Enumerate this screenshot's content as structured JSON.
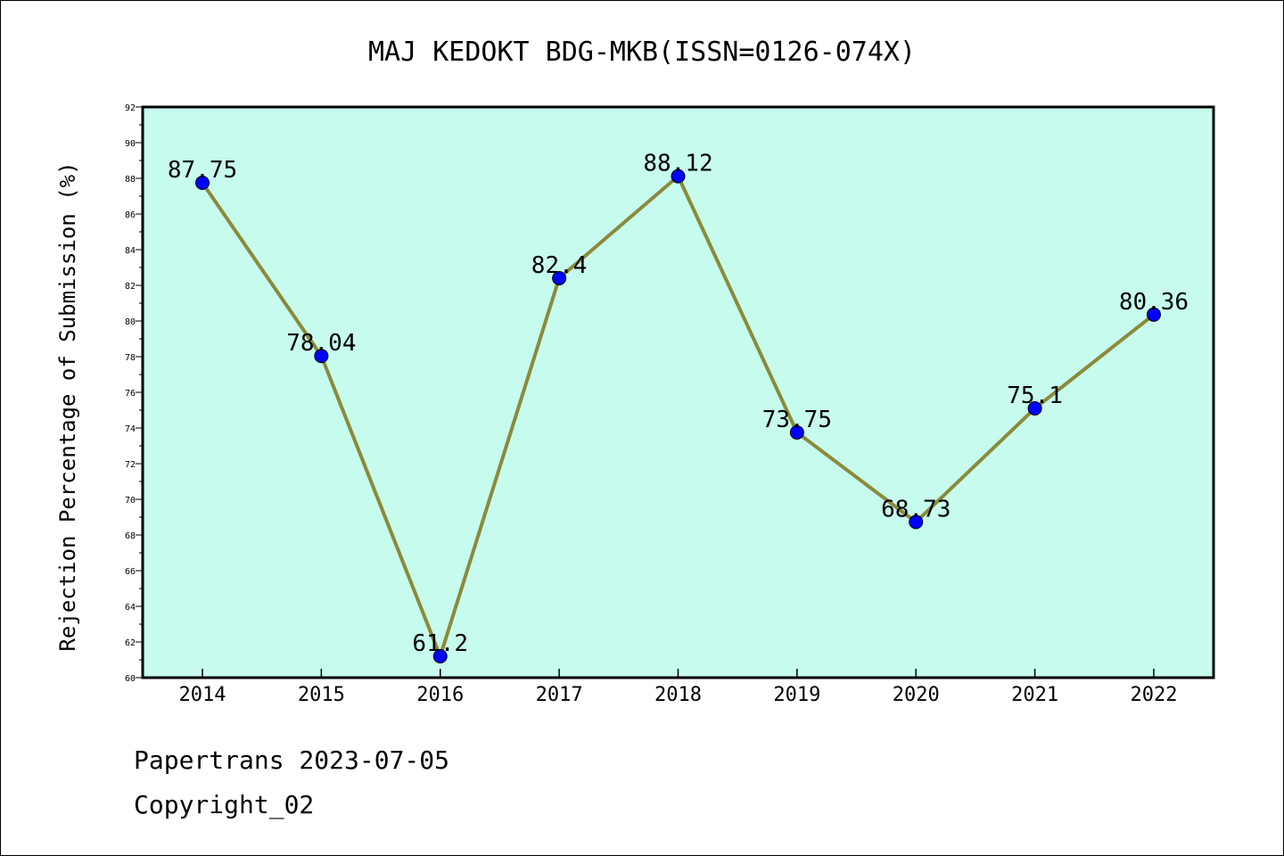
{
  "chart_data": {
    "type": "line",
    "title": "MAJ KEDOKT BDG-MKB(ISSN=0126-074X)",
    "xlabel": "",
    "ylabel": "Rejection Percentage of Submission (%)",
    "categories": [
      "2014",
      "2015",
      "2016",
      "2017",
      "2018",
      "2019",
      "2020",
      "2021",
      "2022"
    ],
    "series": [
      {
        "values": [
          87.75,
          78.04,
          61.2,
          82.4,
          88.12,
          73.75,
          68.73,
          75.1,
          80.36
        ]
      }
    ],
    "data_labels": [
      "87.75",
      "78.04",
      "61.2",
      "82.4",
      "88.12",
      "73.75",
      "68.73",
      "75.1",
      "80.36"
    ],
    "ylim": [
      60,
      92
    ],
    "yticks": [
      "60",
      "62",
      "64",
      "66",
      "68",
      "70",
      "72",
      "74",
      "76",
      "78",
      "80",
      "82",
      "84",
      "86",
      "88",
      "90",
      "92"
    ],
    "grid": false,
    "colors": {
      "plot_background": "#c6fbee",
      "line": "#8b8a3a",
      "marker": "#0000ff"
    }
  },
  "footer": {
    "line1": "Papertrans 2023-07-05",
    "line2": "Copyright_02"
  }
}
